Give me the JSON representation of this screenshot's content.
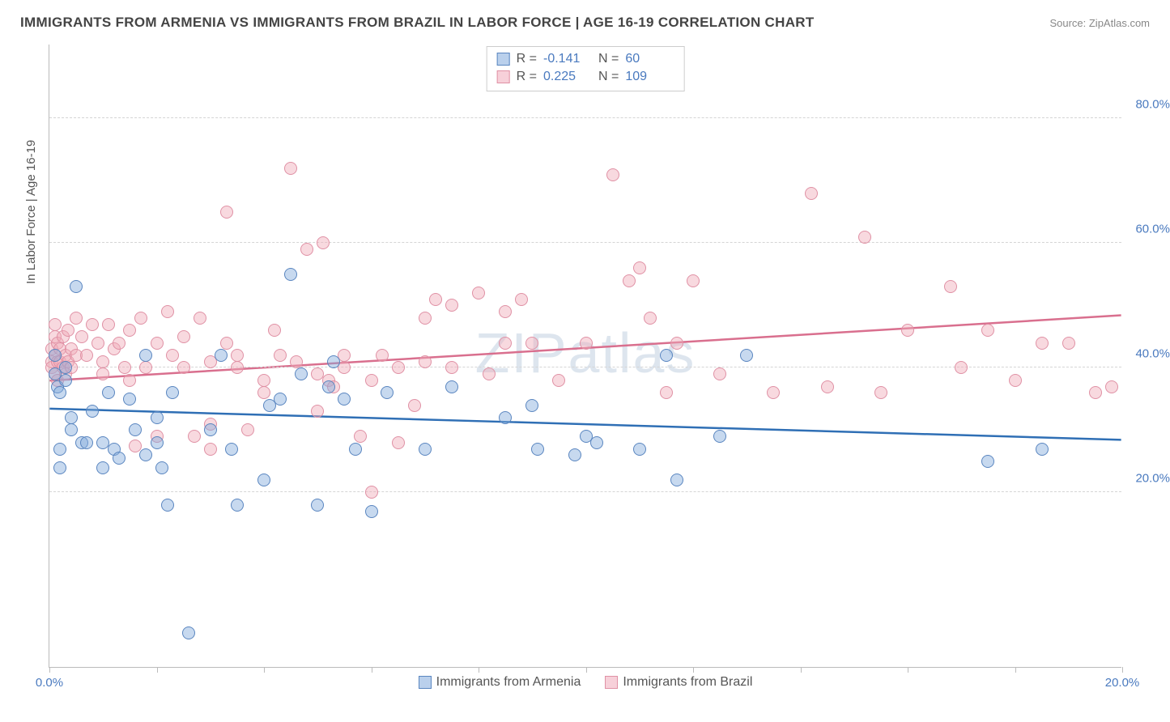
{
  "title": "IMMIGRANTS FROM ARMENIA VS IMMIGRANTS FROM BRAZIL IN LABOR FORCE | AGE 16-19 CORRELATION CHART",
  "source": "Source: ZipAtlas.com",
  "watermark": "ZIPatlas",
  "y_axis_label": "In Labor Force | Age 16-19",
  "colors": {
    "blue_fill": "rgba(130,170,220,0.45)",
    "blue_stroke": "#5a86c0",
    "pink_fill": "rgba(240,170,185,0.45)",
    "pink_stroke": "#e091a5",
    "trend_blue": "#2f6fb5",
    "trend_pink": "#d96f8e",
    "grid": "#d5d5d5",
    "axis": "#bbbbbb",
    "tick_text": "#4a7abf",
    "text": "#555555",
    "background": "#ffffff",
    "watermark_color": "#88a6c6"
  },
  "chart": {
    "type": "scatter",
    "xlim": [
      0,
      20
    ],
    "ylim": [
      -8,
      92
    ],
    "x_ticks": [
      0,
      20
    ],
    "x_tick_labels": [
      "0.0%",
      "20.0%"
    ],
    "x_minor_ticks": [
      2,
      4,
      6,
      8,
      10,
      12,
      14,
      16,
      18
    ],
    "y_ticks": [
      20,
      40,
      60,
      80
    ],
    "y_tick_labels": [
      "20.0%",
      "40.0%",
      "60.0%",
      "80.0%"
    ],
    "marker_size": 16,
    "line_width": 2.5,
    "title_fontsize": 17,
    "label_fontsize": 15,
    "watermark_fontsize": 70
  },
  "stats_legend": [
    {
      "swatch": "blue",
      "r_label": "R =",
      "r": "-0.141",
      "n_label": "N =",
      "n": "60"
    },
    {
      "swatch": "pink",
      "r_label": "R =",
      "r": "0.225",
      "n_label": "N =",
      "n": "109"
    }
  ],
  "series_legend": [
    {
      "swatch": "blue",
      "label": "Immigrants from Armenia"
    },
    {
      "swatch": "pink",
      "label": "Immigrants from Brazil"
    }
  ],
  "trend_lines": {
    "blue": {
      "x1": 0,
      "y1": 33.5,
      "x2": 20,
      "y2": 28.5
    },
    "pink": {
      "x1": 0,
      "y1": 38.0,
      "x2": 20,
      "y2": 48.5
    }
  },
  "points_blue": [
    [
      0.1,
      39
    ],
    [
      0.1,
      42
    ],
    [
      0.15,
      37
    ],
    [
      0.2,
      36
    ],
    [
      0.2,
      27
    ],
    [
      0.2,
      24
    ],
    [
      0.3,
      40
    ],
    [
      0.3,
      38
    ],
    [
      0.4,
      30
    ],
    [
      0.4,
      32
    ],
    [
      0.5,
      53
    ],
    [
      0.6,
      28
    ],
    [
      0.7,
      28
    ],
    [
      0.8,
      33
    ],
    [
      1.0,
      28
    ],
    [
      1.0,
      24
    ],
    [
      1.1,
      36
    ],
    [
      1.2,
      27
    ],
    [
      1.3,
      25.5
    ],
    [
      1.5,
      35
    ],
    [
      1.6,
      30
    ],
    [
      1.8,
      42
    ],
    [
      1.8,
      26
    ],
    [
      2.0,
      32
    ],
    [
      2.0,
      28
    ],
    [
      2.1,
      24
    ],
    [
      2.2,
      18
    ],
    [
      2.3,
      36
    ],
    [
      2.6,
      -2.5
    ],
    [
      3.0,
      30
    ],
    [
      3.2,
      42
    ],
    [
      3.4,
      27
    ],
    [
      3.5,
      18
    ],
    [
      4.0,
      22
    ],
    [
      4.1,
      34
    ],
    [
      4.3,
      35
    ],
    [
      4.5,
      55
    ],
    [
      4.7,
      39
    ],
    [
      5.0,
      18
    ],
    [
      5.2,
      37
    ],
    [
      5.3,
      41
    ],
    [
      5.5,
      35
    ],
    [
      5.7,
      27
    ],
    [
      6.0,
      17
    ],
    [
      6.3,
      36
    ],
    [
      7.0,
      27
    ],
    [
      7.5,
      37
    ],
    [
      8.5,
      32
    ],
    [
      9.0,
      34
    ],
    [
      9.1,
      27
    ],
    [
      9.8,
      26
    ],
    [
      10.0,
      29
    ],
    [
      10.2,
      28
    ],
    [
      11.0,
      27
    ],
    [
      11.5,
      42
    ],
    [
      11.7,
      22
    ],
    [
      12.5,
      29
    ],
    [
      13.0,
      42
    ],
    [
      17.5,
      25
    ],
    [
      18.5,
      27
    ]
  ],
  "points_pink": [
    [
      0.05,
      43
    ],
    [
      0.05,
      41
    ],
    [
      0.05,
      40
    ],
    [
      0.1,
      47
    ],
    [
      0.1,
      45
    ],
    [
      0.1,
      42
    ],
    [
      0.1,
      39
    ],
    [
      0.15,
      44
    ],
    [
      0.15,
      41
    ],
    [
      0.15,
      38
    ],
    [
      0.2,
      43
    ],
    [
      0.2,
      41
    ],
    [
      0.25,
      45
    ],
    [
      0.25,
      40
    ],
    [
      0.3,
      42
    ],
    [
      0.3,
      39
    ],
    [
      0.35,
      46
    ],
    [
      0.35,
      41
    ],
    [
      0.4,
      43
    ],
    [
      0.4,
      40
    ],
    [
      0.5,
      48
    ],
    [
      0.5,
      42
    ],
    [
      0.6,
      45
    ],
    [
      0.7,
      42
    ],
    [
      0.8,
      47
    ],
    [
      0.9,
      44
    ],
    [
      1.0,
      41
    ],
    [
      1.0,
      39
    ],
    [
      1.1,
      47
    ],
    [
      1.2,
      43
    ],
    [
      1.3,
      44
    ],
    [
      1.4,
      40
    ],
    [
      1.5,
      46
    ],
    [
      1.5,
      38
    ],
    [
      1.6,
      27.5
    ],
    [
      1.7,
      48
    ],
    [
      1.8,
      40
    ],
    [
      2.0,
      44
    ],
    [
      2.0,
      29
    ],
    [
      2.2,
      49
    ],
    [
      2.3,
      42
    ],
    [
      2.5,
      40
    ],
    [
      2.5,
      45
    ],
    [
      2.7,
      29
    ],
    [
      2.8,
      48
    ],
    [
      3.0,
      27
    ],
    [
      3.0,
      31
    ],
    [
      3.0,
      41
    ],
    [
      3.3,
      44
    ],
    [
      3.3,
      65
    ],
    [
      3.5,
      42
    ],
    [
      3.5,
      40
    ],
    [
      3.7,
      30
    ],
    [
      4.0,
      38
    ],
    [
      4.0,
      36
    ],
    [
      4.2,
      46
    ],
    [
      4.3,
      42
    ],
    [
      4.5,
      72
    ],
    [
      4.6,
      41
    ],
    [
      4.8,
      59
    ],
    [
      5.0,
      39
    ],
    [
      5.0,
      33
    ],
    [
      5.1,
      60
    ],
    [
      5.2,
      38
    ],
    [
      5.3,
      37
    ],
    [
      5.5,
      40
    ],
    [
      5.5,
      42
    ],
    [
      5.8,
      29
    ],
    [
      6.0,
      38
    ],
    [
      6.0,
      20
    ],
    [
      6.2,
      42
    ],
    [
      6.5,
      28
    ],
    [
      6.5,
      40
    ],
    [
      6.8,
      34
    ],
    [
      7.0,
      48
    ],
    [
      7.0,
      41
    ],
    [
      7.2,
      51
    ],
    [
      7.5,
      50
    ],
    [
      7.5,
      40
    ],
    [
      8.0,
      52
    ],
    [
      8.2,
      39
    ],
    [
      8.5,
      44
    ],
    [
      8.5,
      49
    ],
    [
      8.8,
      51
    ],
    [
      9.0,
      44
    ],
    [
      9.5,
      38
    ],
    [
      10.0,
      44
    ],
    [
      10.5,
      71
    ],
    [
      10.8,
      54
    ],
    [
      11.0,
      56
    ],
    [
      11.2,
      48
    ],
    [
      11.5,
      36
    ],
    [
      11.7,
      44
    ],
    [
      12.0,
      54
    ],
    [
      12.5,
      39
    ],
    [
      13.5,
      36
    ],
    [
      14.2,
      68
    ],
    [
      14.5,
      37
    ],
    [
      15.2,
      61
    ],
    [
      15.5,
      36
    ],
    [
      16.0,
      46
    ],
    [
      16.8,
      53
    ],
    [
      17.0,
      40
    ],
    [
      17.5,
      46
    ],
    [
      18.0,
      38
    ],
    [
      18.5,
      44
    ],
    [
      19.0,
      44
    ],
    [
      19.5,
      36
    ],
    [
      19.8,
      37
    ]
  ]
}
